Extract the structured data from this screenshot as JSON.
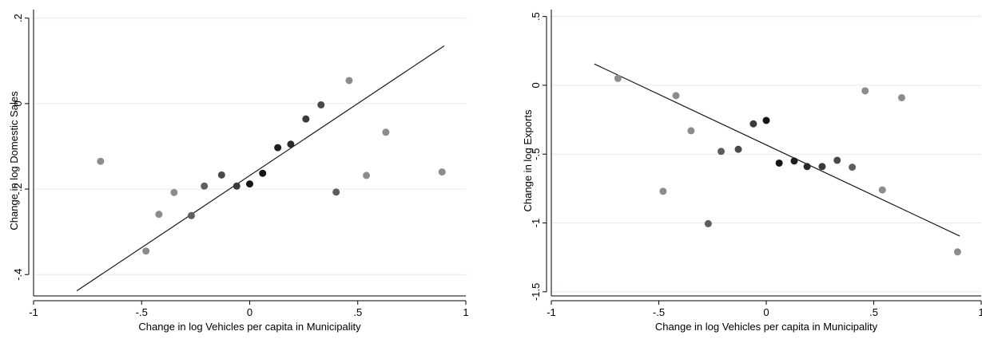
{
  "colors": {
    "background": "#ffffff",
    "grid": "#dceeee",
    "axis": "#000000",
    "fit_line": "#1a1a1a"
  },
  "chart_data": [
    {
      "type": "scatter",
      "title": "",
      "xlabel": "Change in log Vehicles per capita in Municipality",
      "ylabel": "Change in log Domestic Sales",
      "xlim": [
        -1.0,
        1.0
      ],
      "ylim": [
        -0.45,
        0.22
      ],
      "xticks": [
        -1,
        -0.5,
        0,
        0.5,
        1
      ],
      "xtick_labels": [
        "-1",
        "-.5",
        "0",
        ".5",
        "1"
      ],
      "yticks": [
        -0.4,
        -0.2,
        0,
        0.2
      ],
      "ytick_labels": [
        "-.4",
        "-.2",
        "0",
        ".2"
      ],
      "grid": true,
      "points": [
        {
          "x": -0.69,
          "y": -0.135,
          "shade": "#8c8c8c"
        },
        {
          "x": -0.48,
          "y": -0.345,
          "shade": "#8c8c8c"
        },
        {
          "x": -0.42,
          "y": -0.259,
          "shade": "#8c8c8c"
        },
        {
          "x": -0.35,
          "y": -0.208,
          "shade": "#8c8c8c"
        },
        {
          "x": -0.27,
          "y": -0.262,
          "shade": "#5e5e5e"
        },
        {
          "x": -0.21,
          "y": -0.193,
          "shade": "#5e5e5e"
        },
        {
          "x": -0.13,
          "y": -0.167,
          "shade": "#4a4a4a"
        },
        {
          "x": -0.06,
          "y": -0.193,
          "shade": "#3a3a3a"
        },
        {
          "x": 0.0,
          "y": -0.188,
          "shade": "#151515"
        },
        {
          "x": 0.06,
          "y": -0.163,
          "shade": "#151515"
        },
        {
          "x": 0.13,
          "y": -0.103,
          "shade": "#1e1e1e"
        },
        {
          "x": 0.19,
          "y": -0.095,
          "shade": "#2a2a2a"
        },
        {
          "x": 0.26,
          "y": -0.036,
          "shade": "#3a3a3a"
        },
        {
          "x": 0.33,
          "y": -0.003,
          "shade": "#4a4a4a"
        },
        {
          "x": 0.4,
          "y": -0.207,
          "shade": "#5e5e5e"
        },
        {
          "x": 0.46,
          "y": 0.054,
          "shade": "#8c8c8c"
        },
        {
          "x": 0.54,
          "y": -0.168,
          "shade": "#8c8c8c"
        },
        {
          "x": 0.63,
          "y": -0.067,
          "shade": "#8c8c8c"
        },
        {
          "x": 0.89,
          "y": -0.16,
          "shade": "#8c8c8c"
        }
      ],
      "fit_line": {
        "x": [
          -0.8,
          0.9
        ],
        "y": [
          -0.438,
          0.135
        ]
      }
    },
    {
      "type": "scatter",
      "title": "",
      "xlabel": "Change in log Vehicles per capita in Municipality",
      "ylabel": "Change in log Exports",
      "xlim": [
        -1.0,
        1.0
      ],
      "ylim": [
        -1.53,
        0.55
      ],
      "xticks": [
        -1,
        -0.5,
        0,
        0.5,
        1
      ],
      "xtick_labels": [
        "-1",
        "-.5",
        "0",
        ".5",
        "1"
      ],
      "yticks": [
        -1.5,
        -1,
        -0.5,
        0,
        0.5
      ],
      "ytick_labels": [
        "-1.5",
        "-1",
        "-.5",
        "0",
        ".5"
      ],
      "grid": true,
      "points": [
        {
          "x": -0.69,
          "y": 0.05,
          "shade": "#8c8c8c"
        },
        {
          "x": -0.48,
          "y": -0.77,
          "shade": "#8c8c8c"
        },
        {
          "x": -0.42,
          "y": -0.075,
          "shade": "#8c8c8c"
        },
        {
          "x": -0.35,
          "y": -0.33,
          "shade": "#8c8c8c"
        },
        {
          "x": -0.27,
          "y": -1.005,
          "shade": "#5e5e5e"
        },
        {
          "x": -0.21,
          "y": -0.48,
          "shade": "#5e5e5e"
        },
        {
          "x": -0.13,
          "y": -0.465,
          "shade": "#4a4a4a"
        },
        {
          "x": -0.06,
          "y": -0.28,
          "shade": "#3a3a3a"
        },
        {
          "x": 0.0,
          "y": -0.255,
          "shade": "#151515"
        },
        {
          "x": 0.06,
          "y": -0.565,
          "shade": "#151515"
        },
        {
          "x": 0.13,
          "y": -0.55,
          "shade": "#1e1e1e"
        },
        {
          "x": 0.19,
          "y": -0.59,
          "shade": "#2a2a2a"
        },
        {
          "x": 0.26,
          "y": -0.59,
          "shade": "#3a3a3a"
        },
        {
          "x": 0.33,
          "y": -0.545,
          "shade": "#4a4a4a"
        },
        {
          "x": 0.4,
          "y": -0.595,
          "shade": "#5e5e5e"
        },
        {
          "x": 0.46,
          "y": -0.04,
          "shade": "#8c8c8c"
        },
        {
          "x": 0.54,
          "y": -0.76,
          "shade": "#8c8c8c"
        },
        {
          "x": 0.63,
          "y": -0.09,
          "shade": "#8c8c8c"
        },
        {
          "x": 0.89,
          "y": -1.21,
          "shade": "#8c8c8c"
        }
      ],
      "fit_line": {
        "x": [
          -0.8,
          0.9
        ],
        "y": [
          0.155,
          -1.095
        ]
      }
    }
  ]
}
